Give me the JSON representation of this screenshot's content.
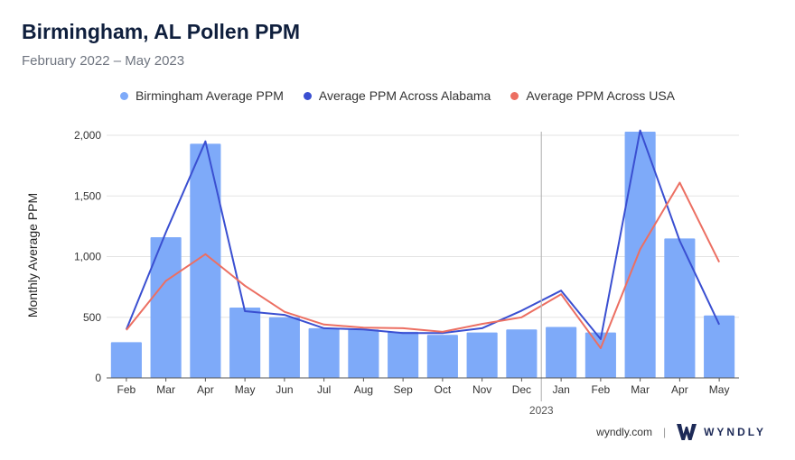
{
  "header": {
    "title": "Birmingham, AL Pollen PPM",
    "subtitle": "February 2022 – May 2023"
  },
  "footer": {
    "site": "wyndly.com",
    "separator": "|",
    "brand": "WYNDLY"
  },
  "colors": {
    "bars": "#7eaaf9",
    "alabama": "#3a4fd1",
    "usa": "#ec6f62",
    "grid": "#e3e3e3"
  },
  "chart_data": {
    "type": "bar",
    "title": "Birmingham, AL Pollen PPM",
    "subtitle": "February 2022 – May 2023",
    "ylabel": "Monthly Average PPM",
    "xlabel": "",
    "ylim": [
      0,
      2000
    ],
    "yticks": [
      0,
      500,
      1000,
      1500,
      2000
    ],
    "ytick_labels": [
      "0",
      "500",
      "1,000",
      "1,500",
      "2,000"
    ],
    "categories": [
      "Feb",
      "Mar",
      "Apr",
      "May",
      "Jun",
      "Jul",
      "Aug",
      "Sep",
      "Oct",
      "Nov",
      "Dec",
      "Jan",
      "Feb",
      "Mar",
      "Apr",
      "May"
    ],
    "year_marker": {
      "label": "2023",
      "before_category_index": 11
    },
    "legend_position": "top-center",
    "grid": true,
    "series": [
      {
        "name": "Birmingham Average PPM",
        "kind": "bar",
        "values": [
          295,
          1160,
          1930,
          580,
          500,
          410,
          400,
          380,
          355,
          375,
          400,
          420,
          375,
          2030,
          1150,
          515
        ]
      },
      {
        "name": "Average PPM Across Alabama",
        "kind": "line",
        "values": [
          400,
          1200,
          1950,
          550,
          520,
          410,
          400,
          370,
          370,
          410,
          555,
          720,
          320,
          2040,
          1130,
          440
        ]
      },
      {
        "name": "Average PPM Across USA",
        "kind": "line",
        "values": [
          395,
          800,
          1020,
          760,
          545,
          440,
          415,
          410,
          380,
          445,
          500,
          690,
          245,
          1060,
          1610,
          955
        ]
      }
    ]
  }
}
